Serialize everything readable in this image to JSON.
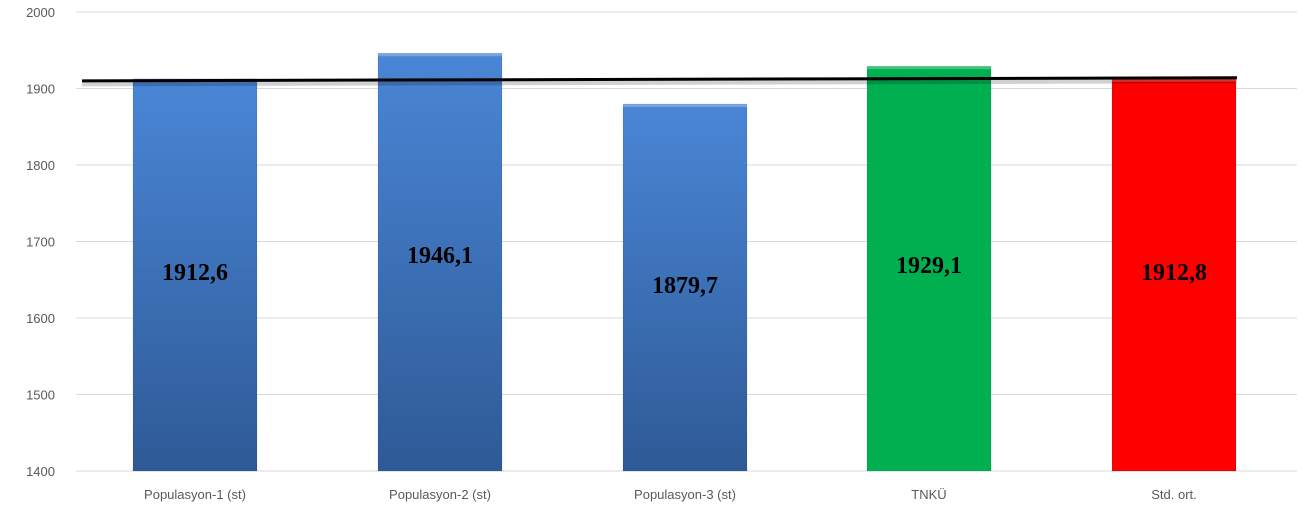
{
  "chart_data": {
    "type": "bar",
    "title": "",
    "xlabel": "",
    "ylabel": "",
    "ylim": [
      1400,
      2000
    ],
    "yticks": [
      1400,
      1500,
      1600,
      1700,
      1800,
      1900,
      2000
    ],
    "ytick_labels": [
      "1400",
      "1500",
      "1600",
      "1700",
      "1800",
      "1900",
      "2000"
    ],
    "grid": true,
    "legend": "none",
    "categories": [
      "Populasyon-1 (st)",
      "Populasyon-2 (st)",
      "Populasyon-3 (st)",
      "TNKÜ",
      "Std. ort."
    ],
    "values": [
      1912.6,
      1946.1,
      1879.7,
      1929.1,
      1912.8
    ],
    "data_labels": [
      "1912,6",
      "1946,1",
      "1879,7",
      "1929,1",
      "1912,8"
    ],
    "bar_colors": [
      "#3b74bf",
      "#3b74bf",
      "#3b74bf",
      "#00b050",
      "#ff0000"
    ],
    "reference_line": {
      "start_value": 1910,
      "end_value": 1914,
      "color": "#000000"
    }
  }
}
